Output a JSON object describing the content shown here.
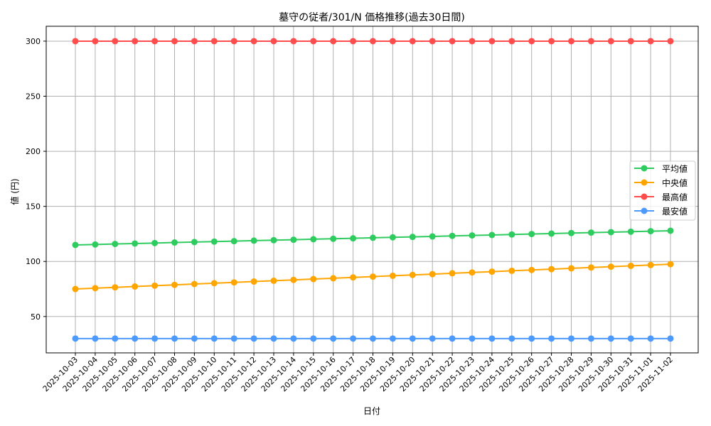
{
  "chart_data": {
    "type": "line",
    "title": "墓守の従者/301/N 価格推移(過去30日間)",
    "xlabel": "日付",
    "ylabel": "値 (円)",
    "ylim": [
      17,
      313.5
    ],
    "yticks": [
      50,
      100,
      150,
      200,
      250,
      300
    ],
    "grid": true,
    "legend_position": "center-right",
    "x": [
      "2025-10-03",
      "2025-10-04",
      "2025-10-05",
      "2025-10-06",
      "2025-10-07",
      "2025-10-08",
      "2025-10-09",
      "2025-10-10",
      "2025-10-11",
      "2025-10-12",
      "2025-10-13",
      "2025-10-14",
      "2025-10-15",
      "2025-10-16",
      "2025-10-17",
      "2025-10-18",
      "2025-10-19",
      "2025-10-20",
      "2025-10-21",
      "2025-10-22",
      "2025-10-23",
      "2025-10-24",
      "2025-10-25",
      "2025-10-26",
      "2025-10-27",
      "2025-10-28",
      "2025-10-29",
      "2025-10-30",
      "2025-10-31",
      "2025-11-01",
      "2025-11-02"
    ],
    "series": [
      {
        "name": "平均値",
        "color": "#2ecc5f",
        "values": [
          115,
          115.4,
          115.9,
          116.3,
          116.7,
          117.2,
          117.6,
          118,
          118.4,
          118.9,
          119.3,
          119.7,
          120.2,
          120.6,
          121,
          121.5,
          121.9,
          122.3,
          122.7,
          123.2,
          123.6,
          124,
          124.5,
          124.9,
          125.3,
          125.8,
          126.2,
          126.6,
          127,
          127.5,
          127.9
        ]
      },
      {
        "name": "中央値",
        "color": "#ffa500",
        "values": [
          75,
          75.75,
          76.5,
          77.25,
          78,
          78.75,
          79.5,
          80.25,
          81,
          81.75,
          82.5,
          83.25,
          84,
          84.75,
          85.5,
          86.25,
          87,
          87.75,
          88.5,
          89.25,
          90,
          90.75,
          91.5,
          92.25,
          93,
          93.75,
          94.5,
          95.25,
          96,
          96.75,
          97.5
        ]
      },
      {
        "name": "最高値",
        "color": "#ff4d4d",
        "values": [
          300,
          300,
          300,
          300,
          300,
          300,
          300,
          300,
          300,
          300,
          300,
          300,
          300,
          300,
          300,
          300,
          300,
          300,
          300,
          300,
          300,
          300,
          300,
          300,
          300,
          300,
          300,
          300,
          300,
          300,
          300
        ]
      },
      {
        "name": "最安値",
        "color": "#4d9aff",
        "values": [
          30,
          30,
          30,
          30,
          30,
          30,
          30,
          30,
          30,
          30,
          30,
          30,
          30,
          30,
          30,
          30,
          30,
          30,
          30,
          30,
          30,
          30,
          30,
          30,
          30,
          30,
          30,
          30,
          30,
          30,
          30
        ]
      }
    ]
  }
}
